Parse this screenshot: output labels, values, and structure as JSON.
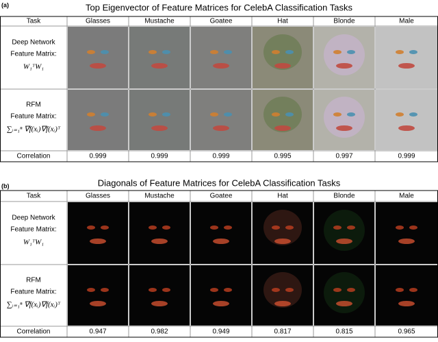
{
  "panels": [
    {
      "label": "(a)",
      "title": "Top Eigenvector of Feature Matrices for CelebA Classification Tasks",
      "header": [
        "Task",
        "Glasses",
        "Mustache",
        "Goatee",
        "Hat",
        "Blonde",
        "Male"
      ],
      "rows": [
        {
          "lines": [
            "Deep Network",
            "Feature Matrix:"
          ],
          "formula": "W₁ᵀW₁"
        },
        {
          "lines": [
            "RFM",
            "Feature Matrix:"
          ],
          "formula": "∑ᵢ₌₁ⁿ ∇f(xᵢ)∇f(xᵢ)ᵀ"
        }
      ],
      "correlation_label": "Correlation",
      "correlations": [
        "0.999",
        "0.999",
        "0.999",
        "0.995",
        "0.997",
        "0.999"
      ]
    },
    {
      "label": "(b)",
      "title": "Diagonals of Feature Matrices for CelebA Classification Tasks",
      "header": [
        "Task",
        "Glasses",
        "Mustache",
        "Goatee",
        "Hat",
        "Blonde",
        "Male"
      ],
      "rows": [
        {
          "lines": [
            "Deep Network",
            "Feature Matrix:"
          ],
          "formula": "W₁ᵀW₁"
        },
        {
          "lines": [
            "RFM",
            "Feature Matrix:"
          ],
          "formula": "∑ᵢ₌₁ⁿ ∇f(xᵢ)∇f(xᵢ)ᵀ"
        }
      ],
      "correlation_label": "Correlation",
      "correlations": [
        "0.947",
        "0.982",
        "0.949",
        "0.817",
        "0.815",
        "0.965"
      ]
    }
  ]
}
